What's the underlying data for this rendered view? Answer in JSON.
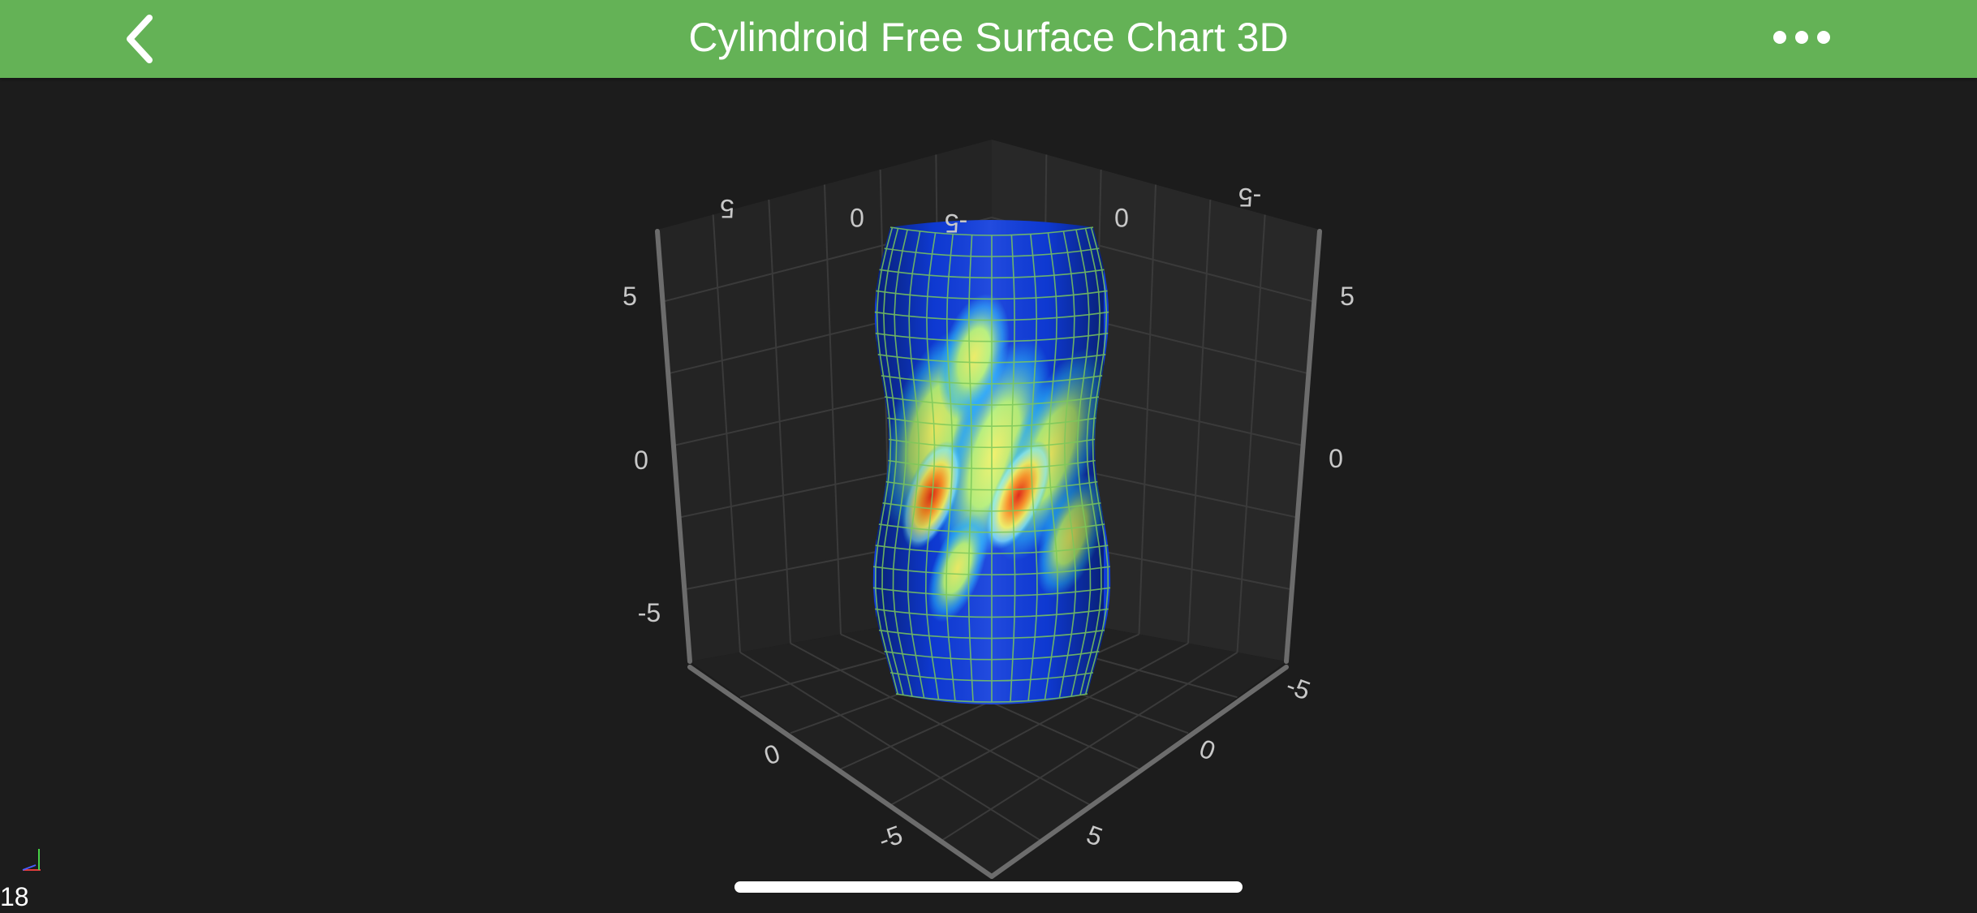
{
  "header": {
    "title": "Cylindroid Free Surface Chart 3D",
    "back_icon": "chevron-left-icon",
    "more_icon": "ellipsis-icon"
  },
  "colors": {
    "header_bg": "#64b256",
    "chart_bg": "#1c1c1c",
    "mesh": "#7cc85a",
    "colormap": [
      "#0a14c8",
      "#1450ff",
      "#28b4ff",
      "#8cf0ff",
      "#f0f064",
      "#ff9628",
      "#e62814"
    ]
  },
  "chart_data": {
    "type": "3d-surface-cylindroid",
    "title": "Cylindroid Free Surface Chart 3D",
    "x_ticks": [
      "-5",
      "0",
      "5"
    ],
    "y_ticks": [
      "-5",
      "0",
      "5"
    ],
    "z_ticks": [
      "-5",
      "0",
      "5"
    ],
    "x_range": [
      -7,
      7
    ],
    "y_range": [
      -7,
      7
    ],
    "z_range": [
      -7,
      7
    ],
    "grid": true,
    "surface": "cylindroid mesh with wireframe, jet colormap"
  },
  "status": {
    "fps": "18"
  }
}
